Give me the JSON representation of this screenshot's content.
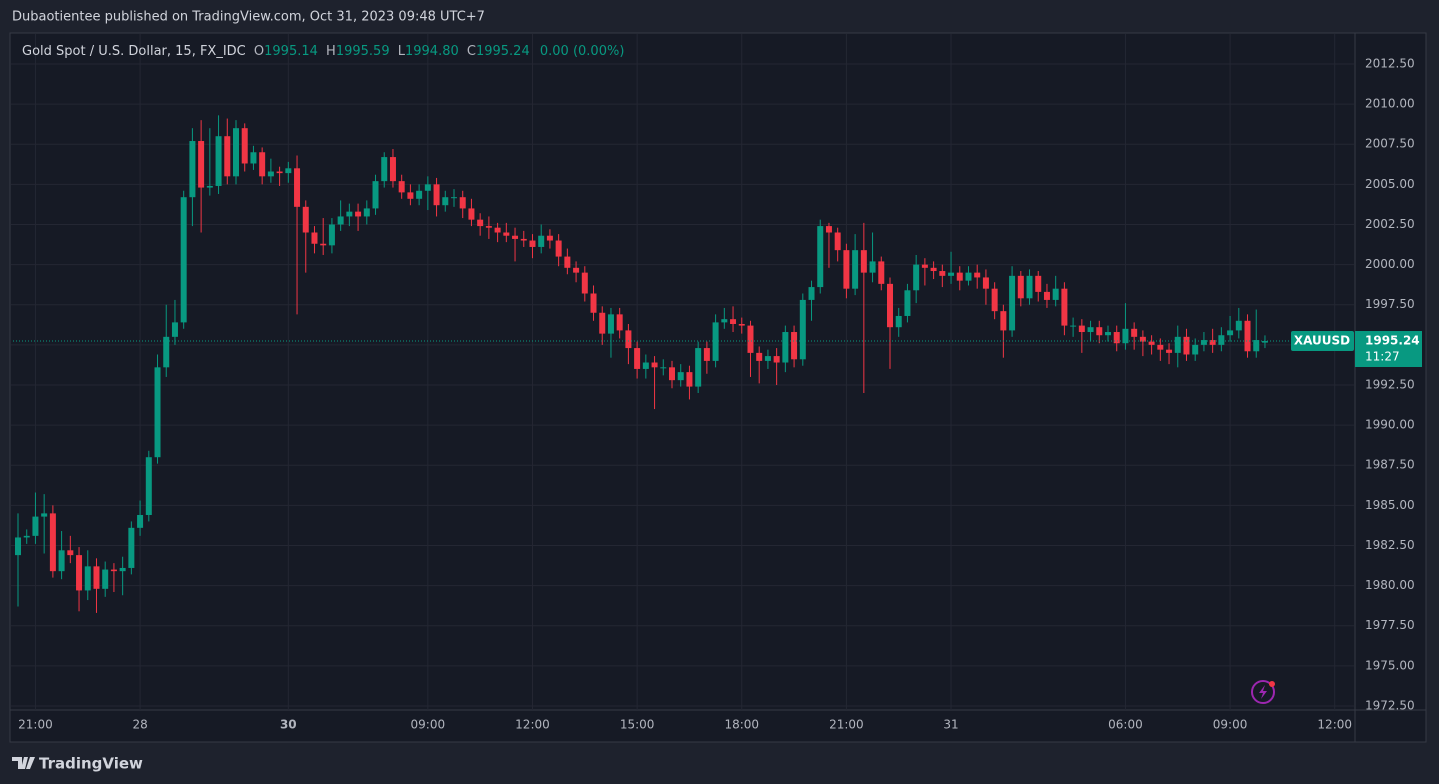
{
  "header": {
    "title": "Dubaotientee published on TradingView.com, Oct 31, 2023 09:48 UTC+7"
  },
  "legend": {
    "symbol": "Gold Spot / U.S. Dollar, 15, FX_IDC",
    "o_key": "O",
    "o_value": "1995.14",
    "h_key": "H",
    "h_value": "1995.59",
    "l_key": "L",
    "l_value": "1994.80",
    "c_key": "C",
    "c_value": "1995.24",
    "change": "0.00 (0.00%)"
  },
  "price_tag": {
    "symbol": "XAUUSD",
    "countdown": "11:27"
  },
  "footer": {
    "brand": "TradingView"
  },
  "chart_data": {
    "type": "candlestick",
    "up_color": "#089981",
    "down_color": "#f23645",
    "grid": true,
    "ylim": [
      1972.25,
      2014.43
    ],
    "yticks": [
      {
        "value": 1972.5,
        "label": "1972.50"
      },
      {
        "value": 1975,
        "label": "1975.00"
      },
      {
        "value": 1977.5,
        "label": "1977.50"
      },
      {
        "value": 1980,
        "label": "1980.00"
      },
      {
        "value": 1982.5,
        "label": "1982.50"
      },
      {
        "value": 1985,
        "label": "1985.00"
      },
      {
        "value": 1987.5,
        "label": "1987.50"
      },
      {
        "value": 1990,
        "label": "1990.00"
      },
      {
        "value": 1992.5,
        "label": "1992.50"
      },
      {
        "value": 1995,
        "label": "1995.00"
      },
      {
        "value": 1997.5,
        "label": "1997.50"
      },
      {
        "value": 2000,
        "label": "2000.00"
      },
      {
        "value": 2002.5,
        "label": "2002.50"
      },
      {
        "value": 2005,
        "label": "2005.00"
      },
      {
        "value": 2007.5,
        "label": "2007.50"
      },
      {
        "value": 2010,
        "label": "2010.00"
      },
      {
        "value": 2012.5,
        "label": "2012.50"
      }
    ],
    "categories": [
      null,
      null,
      "21:00",
      null,
      null,
      null,
      null,
      null,
      null,
      null,
      null,
      null,
      null,
      null,
      "28",
      null,
      null,
      null,
      null,
      null,
      null,
      null,
      null,
      null,
      null,
      null,
      null,
      null,
      null,
      null,
      null,
      "30",
      null,
      null,
      null,
      null,
      null,
      null,
      null,
      null,
      null,
      null,
      null,
      null,
      null,
      null,
      null,
      "09:00",
      null,
      null,
      null,
      null,
      null,
      null,
      null,
      null,
      null,
      null,
      null,
      "12:00",
      null,
      null,
      null,
      null,
      null,
      null,
      null,
      null,
      null,
      null,
      null,
      "15:00",
      null,
      null,
      null,
      null,
      null,
      null,
      null,
      null,
      null,
      null,
      null,
      "18:00",
      null,
      null,
      null,
      null,
      null,
      null,
      null,
      null,
      null,
      null,
      null,
      "21:00",
      null,
      null,
      null,
      null,
      null,
      null,
      null,
      null,
      null,
      null,
      null,
      "31",
      null,
      null,
      null,
      null,
      null,
      null,
      null,
      null,
      null,
      null,
      null,
      null,
      null,
      null,
      null,
      null,
      null,
      null,
      null,
      "06:00",
      null,
      null,
      null,
      null,
      null,
      null,
      null,
      null,
      null,
      null,
      null,
      "09:00",
      null,
      null,
      null,
      null,
      null,
      null,
      null,
      null,
      null,
      null,
      null,
      "12:00"
    ],
    "open": [
      1981.9,
      1983.0,
      1983.1,
      1984.3,
      1984.5,
      1980.9,
      1982.2,
      1981.9,
      1979.7,
      1981.2,
      1979.8,
      1981.0,
      1980.9,
      1981.1,
      1983.6,
      1984.4,
      1988.0,
      1993.6,
      1995.5,
      1996.4,
      2004.2,
      2007.7,
      2004.8,
      2004.9,
      2008.0,
      2005.5,
      2008.5,
      2006.3,
      2007.0,
      2005.5,
      2005.8,
      2005.7,
      2006.0,
      2003.6,
      2002.0,
      2001.3,
      2001.2,
      2002.5,
      2003.0,
      2003.3,
      2003.0,
      2003.5,
      2005.2,
      2006.7,
      2005.2,
      2004.5,
      2004.1,
      2004.6,
      2005.0,
      2003.7,
      2004.2,
      2004.2,
      2003.5,
      2002.8,
      2002.4,
      2002.3,
      2002.0,
      2001.8,
      2001.6,
      2001.5,
      2001.1,
      2001.8,
      2001.5,
      2000.5,
      1999.8,
      1999.5,
      1998.2,
      1997.0,
      1995.7,
      1996.9,
      1995.9,
      1994.8,
      1993.5,
      1993.9,
      1993.6,
      1993.6,
      1992.8,
      1993.3,
      1992.4,
      1994.8,
      1994.0,
      1996.4,
      1996.6,
      1996.3,
      1996.2,
      1994.5,
      1994.0,
      1994.3,
      1993.9,
      1995.8,
      1994.1,
      1997.8,
      1998.6,
      2002.4,
      2002.0,
      2000.9,
      1998.5,
      2000.9,
      1999.5,
      2000.2,
      1998.8,
      1996.1,
      1996.8,
      1998.4,
      2000.0,
      1999.8,
      1999.6,
      1999.3,
      1999.5,
      1999.0,
      1999.5,
      1999.2,
      1998.5,
      1997.1,
      1995.9,
      1999.3,
      1997.9,
      1999.3,
      1998.3,
      1997.8,
      1998.5,
      1996.2,
      1996.2,
      1995.8,
      1996.1,
      1995.6,
      1995.8,
      1995.1,
      1996.0,
      1995.5,
      1995.2,
      1995.0,
      1994.7,
      1994.5,
      1995.5,
      1994.4,
      1995.0,
      1995.3,
      1995.0,
      1995.6,
      1995.9,
      1996.5,
      1994.6,
      1995.14,
      null,
      null,
      null,
      null,
      null,
      null,
      null,
      null
    ],
    "high": [
      1984.5,
      1983.5,
      1985.8,
      1985.7,
      1985.0,
      1983.4,
      1983.1,
      1982.4,
      1982.2,
      1981.7,
      1981.5,
      1981.4,
      1981.8,
      1984.0,
      1985.3,
      1988.4,
      1994.4,
      1997.5,
      1997.8,
      2004.6,
      2008.5,
      2009.0,
      2008.5,
      2009.3,
      2009.1,
      2009.0,
      2008.8,
      2007.4,
      2007.3,
      2006.6,
      2006.1,
      2006.4,
      2006.8,
      2004.0,
      2002.4,
      2002.9,
      2002.9,
      2004.0,
      2003.8,
      2003.8,
      2004.0,
      2005.6,
      2007.0,
      2007.2,
      2005.6,
      2005.0,
      2005.0,
      2005.5,
      2005.4,
      2004.6,
      2004.7,
      2004.6,
      2004.1,
      2003.2,
      2003.0,
      2002.6,
      2002.6,
      2002.3,
      2002.1,
      2001.9,
      2002.5,
      2002.2,
      2001.9,
      2001.0,
      2000.2,
      1999.9,
      1998.7,
      1997.4,
      1997.3,
      1997.3,
      1996.3,
      1995.2,
      1994.4,
      1994.3,
      1994.1,
      1994.0,
      1993.8,
      1993.7,
      1995.2,
      1995.2,
      1996.9,
      1997.3,
      1997.4,
      1996.7,
      1996.5,
      1994.9,
      1994.7,
      1994.8,
      1996.2,
      1996.2,
      1998.2,
      1999.0,
      2002.8,
      2002.6,
      2002.3,
      2001.3,
      2001.9,
      2002.6,
      2002.0,
      2000.5,
      1999.2,
      1997.3,
      1998.8,
      2000.6,
      2000.4,
      2000.2,
      2000.0,
      2000.8,
      1999.9,
      1999.9,
      2000.0,
      1999.7,
      1998.9,
      1997.5,
      1999.9,
      1999.6,
      1999.7,
      1999.6,
      1998.8,
      1999.3,
      1998.9,
      1996.7,
      1996.6,
      1996.5,
      1996.5,
      1996.2,
      1996.2,
      1997.6,
      1996.4,
      1995.9,
      1995.6,
      1995.4,
      1995.1,
      1996.2,
      1996.0,
      1995.4,
      1995.8,
      1996.0,
      1996.1,
      1996.8,
      1997.3,
      1996.9,
      1997.2,
      1995.59,
      null,
      null,
      null,
      null,
      null,
      null,
      null,
      null
    ],
    "low": [
      1978.7,
      1982.6,
      1982.6,
      1982.0,
      1980.5,
      1980.4,
      1981.4,
      1978.4,
      1979.1,
      1978.3,
      1979.3,
      1979.6,
      1979.4,
      1980.7,
      1983.1,
      1984.0,
      1987.6,
      1993.0,
      1995.0,
      1996.0,
      2002.4,
      2002.0,
      2004.3,
      2004.4,
      2005.0,
      2005.0,
      2005.8,
      2005.9,
      2005.0,
      2005.1,
      2004.9,
      2005.1,
      1996.9,
      1999.5,
      2000.7,
      2000.6,
      2000.7,
      2002.1,
      2002.4,
      2002.1,
      2002.5,
      2003.1,
      2004.8,
      2004.8,
      2004.1,
      2003.7,
      2003.7,
      2003.4,
      2003.0,
      2003.3,
      2003.6,
      2002.9,
      2002.4,
      2001.8,
      2001.6,
      2001.4,
      2001.4,
      2000.2,
      2001.1,
      2000.4,
      2000.7,
      2001.0,
      1999.9,
      1999.4,
      1998.9,
      1997.7,
      1996.5,
      1995.0,
      1994.2,
      1995.4,
      1993.8,
      1992.9,
      1992.9,
      1991.0,
      1993.1,
      1992.3,
      1992.4,
      1991.6,
      1992.0,
      1993.2,
      1993.6,
      1996.0,
      1995.8,
      1995.7,
      1993.0,
      1992.6,
      1993.5,
      1992.5,
      1993.3,
      1993.6,
      1993.7,
      1996.5,
      1998.2,
      1999.8,
      2000.2,
      1997.9,
      1998.1,
      1992.0,
      1998.9,
      1998.4,
      1993.5,
      1995.5,
      1996.4,
      1997.6,
      1998.7,
      1999.1,
      1998.6,
      1998.8,
      1998.4,
      1998.7,
      1998.5,
      1997.5,
      1996.6,
      1994.2,
      1995.5,
      1997.4,
      1997.5,
      1997.7,
      1997.3,
      1997.4,
      1995.6,
      1995.5,
      1994.5,
      1995.2,
      1995.1,
      1995.2,
      1994.6,
      1994.7,
      1994.7,
      1994.3,
      1994.4,
      1994.0,
      1993.8,
      1993.6,
      1994.0,
      1994.0,
      1994.6,
      1994.5,
      1994.6,
      1995.2,
      1995.4,
      1994.2,
      1994.2,
      1994.8,
      null,
      null,
      null,
      null,
      null,
      null,
      null,
      null
    ],
    "close": [
      1983.0,
      1983.1,
      1984.3,
      1984.5,
      1980.9,
      1982.2,
      1981.9,
      1979.7,
      1981.2,
      1979.8,
      1981.0,
      1980.9,
      1981.1,
      1983.6,
      1984.4,
      1988.0,
      1993.6,
      1995.5,
      1996.4,
      2004.2,
      2007.7,
      2004.8,
      2004.9,
      2008.0,
      2005.5,
      2008.5,
      2006.3,
      2007.0,
      2005.5,
      2005.8,
      2005.7,
      2006.0,
      2003.6,
      2002.0,
      2001.3,
      2001.2,
      2002.5,
      2003.0,
      2003.3,
      2003.0,
      2003.5,
      2005.2,
      2006.7,
      2005.2,
      2004.5,
      2004.1,
      2004.6,
      2005.0,
      2003.7,
      2004.2,
      2004.2,
      2003.5,
      2002.8,
      2002.4,
      2002.3,
      2002.0,
      2001.8,
      2001.6,
      2001.5,
      2001.1,
      2001.8,
      2001.5,
      2000.5,
      1999.8,
      1999.5,
      1998.2,
      1997.0,
      1995.7,
      1996.9,
      1995.9,
      1994.8,
      1993.5,
      1993.9,
      1993.6,
      1993.6,
      1992.8,
      1993.3,
      1992.4,
      1994.8,
      1994.0,
      1996.4,
      1996.6,
      1996.3,
      1996.2,
      1994.5,
      1994.0,
      1994.3,
      1993.9,
      1995.8,
      1994.1,
      1997.8,
      1998.6,
      2002.4,
      2002.0,
      2000.9,
      1998.5,
      2000.9,
      1999.5,
      2000.2,
      1998.8,
      1996.1,
      1996.8,
      1998.4,
      2000.0,
      1999.8,
      1999.6,
      1999.3,
      1999.5,
      1999.0,
      1999.5,
      1999.2,
      1998.5,
      1997.1,
      1995.9,
      1999.3,
      1997.9,
      1999.3,
      1998.3,
      1997.8,
      1998.5,
      1996.2,
      1996.2,
      1995.8,
      1996.1,
      1995.6,
      1995.8,
      1995.1,
      1996.0,
      1995.5,
      1995.2,
      1995.0,
      1994.7,
      1994.5,
      1995.5,
      1994.4,
      1995.0,
      1995.3,
      1995.0,
      1995.6,
      1995.9,
      1996.5,
      1994.6,
      1995.3,
      1995.24,
      null,
      null,
      null,
      null,
      null,
      null,
      null,
      null
    ]
  }
}
